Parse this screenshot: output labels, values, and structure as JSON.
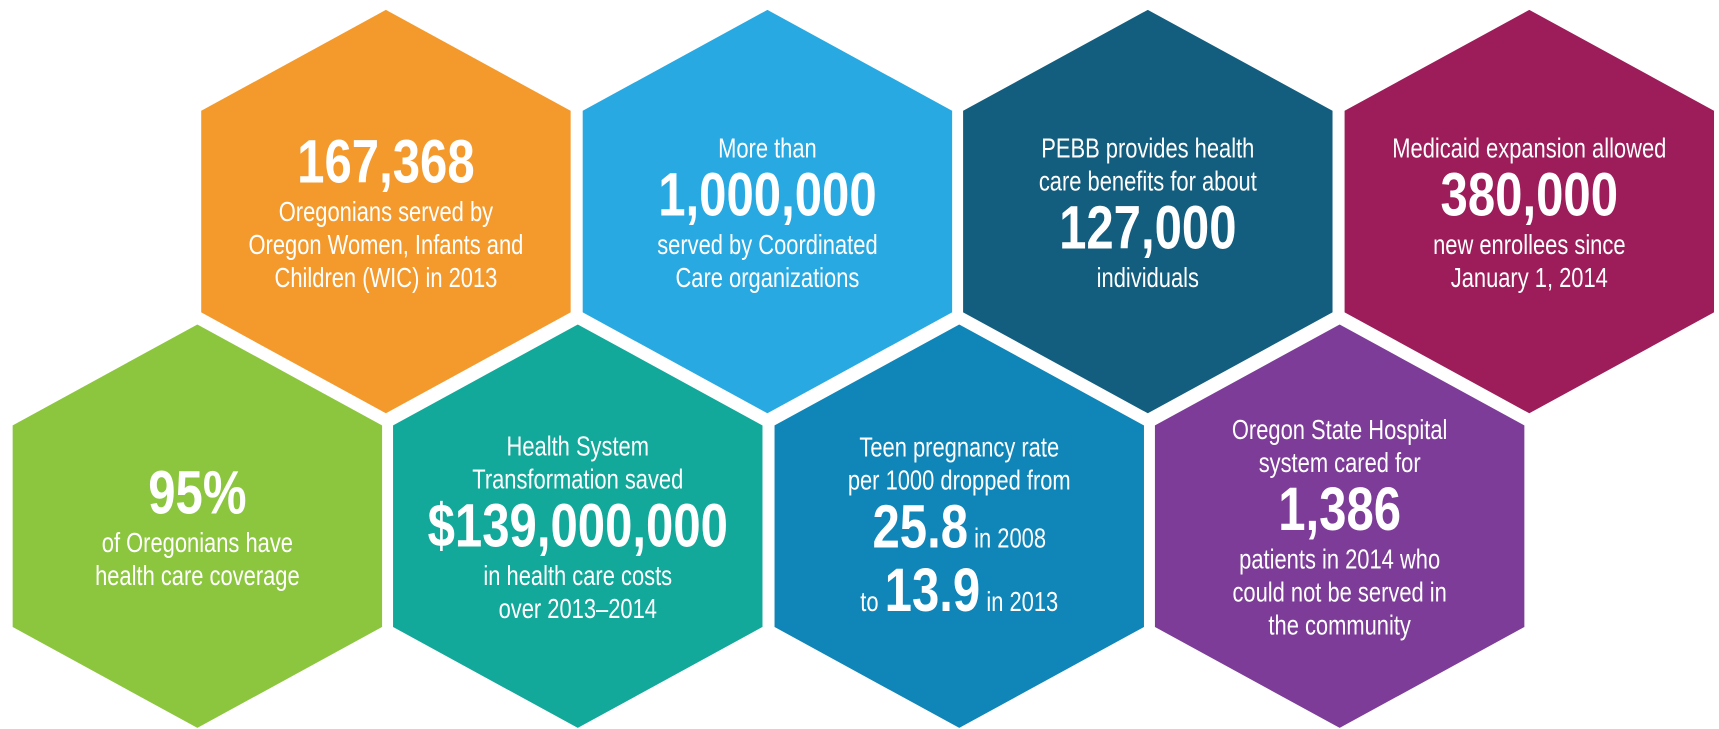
{
  "hexagons": [
    {
      "color": "#f49a2d",
      "lines": [
        [
          {
            "figure": "167,368"
          }
        ],
        [
          {
            "text": "Oregonians served by"
          }
        ],
        [
          {
            "text": "Oregon Women, Infants and"
          }
        ],
        [
          {
            "text": "Children (WIC) in 2013"
          }
        ]
      ]
    },
    {
      "color": "#29a9e1",
      "lines": [
        [
          {
            "text": "More than"
          }
        ],
        [
          {
            "figure": "1,000,000"
          }
        ],
        [
          {
            "text": "served by Coordinated"
          }
        ],
        [
          {
            "text": "Care organizations"
          }
        ]
      ]
    },
    {
      "color": "#135e7e",
      "lines": [
        [
          {
            "text": "PEBB provides health"
          }
        ],
        [
          {
            "text": "care benefits for about"
          }
        ],
        [
          {
            "figure": "127,000"
          }
        ],
        [
          {
            "text": "individuals"
          }
        ]
      ]
    },
    {
      "color": "#9c1d5a",
      "lines": [
        [
          {
            "text": "Medicaid expansion allowed"
          }
        ],
        [
          {
            "figure": "380,000"
          }
        ],
        [
          {
            "text": "new enrollees since"
          }
        ],
        [
          {
            "text": "January 1, 2014"
          }
        ]
      ]
    },
    {
      "color": "#8cc63f",
      "lines": [
        [
          {
            "figure": "95%"
          }
        ],
        [
          {
            "text": "of Oregonians have"
          }
        ],
        [
          {
            "text": "health care coverage"
          }
        ]
      ]
    },
    {
      "color": "#12a89a",
      "lines": [
        [
          {
            "text": "Health System"
          }
        ],
        [
          {
            "text": "Transformation saved"
          }
        ],
        [
          {
            "figure": "$139,000,000"
          }
        ],
        [
          {
            "text": "in health care costs"
          }
        ],
        [
          {
            "text": "over 2013–2014"
          }
        ]
      ]
    },
    {
      "color": "#0f85b8",
      "lines": [
        [
          {
            "text": "Teen pregnancy rate"
          }
        ],
        [
          {
            "text": "per 1000 dropped from"
          }
        ],
        [
          {
            "figure": "25.8"
          },
          {
            "text": " in 2008"
          }
        ],
        [
          {
            "text": "to "
          },
          {
            "figure": "13.9"
          },
          {
            "text": " in 2013"
          }
        ]
      ]
    },
    {
      "color": "#7d3c98",
      "lines": [
        [
          {
            "text": "Oregon State Hospital"
          }
        ],
        [
          {
            "text": "system cared for"
          }
        ],
        [
          {
            "figure": "1,386"
          }
        ],
        [
          {
            "text": "patients in 2014 who"
          }
        ],
        [
          {
            "text": "could not be served in"
          }
        ],
        [
          {
            "text": "the community"
          }
        ]
      ]
    }
  ]
}
